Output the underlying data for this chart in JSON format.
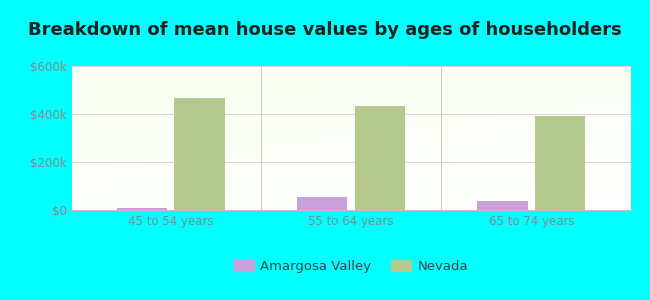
{
  "title": "Breakdown of mean house values by ages of householders",
  "categories": [
    "45 to 54 years",
    "55 to 64 years",
    "65 to 74 years"
  ],
  "amargosa_values": [
    8000,
    55000,
    38000
  ],
  "nevada_values": [
    468000,
    435000,
    392000
  ],
  "amargosa_color": "#c9a0dc",
  "nevada_color": "#b5c98e",
  "ylim": [
    0,
    600000
  ],
  "yticks": [
    0,
    200000,
    400000,
    600000
  ],
  "ytick_labels": [
    "$0",
    "$200k",
    "$400k",
    "$600k"
  ],
  "background_color": "#00ffff",
  "bar_width": 0.28,
  "legend_labels": [
    "Amargosa Valley",
    "Nevada"
  ],
  "title_fontsize": 13,
  "tick_fontsize": 8.5,
  "legend_fontsize": 9.5,
  "tick_color": "#888888",
  "title_color": "#222222"
}
